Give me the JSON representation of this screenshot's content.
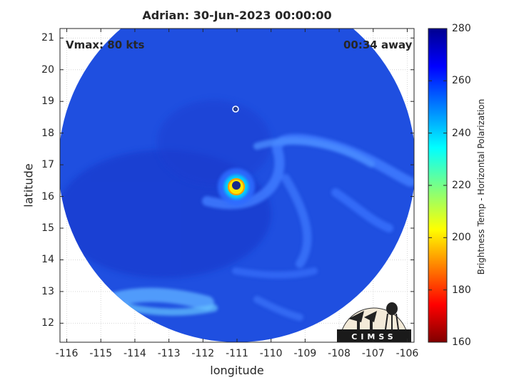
{
  "title": "Adrian: 30-Jun-2023 00:00:00",
  "annotations": {
    "vmax": "Vmax: 80 kts",
    "time_away": "00:34 away"
  },
  "axes": {
    "xlabel": "longitude",
    "ylabel": "latitude",
    "x_ticks": [
      "-116",
      "-115",
      "-114",
      "-113",
      "-112",
      "-111",
      "-110",
      "-109",
      "-108",
      "-107",
      "-106"
    ],
    "y_ticks": [
      "21",
      "20",
      "19",
      "18",
      "17",
      "16",
      "15",
      "14",
      "13",
      "12"
    ],
    "xlim": [
      -116.2,
      -105.8
    ],
    "ylim": [
      11.4,
      21.3
    ]
  },
  "colorbar": {
    "label": "Brightness Temp - Horizontal Polarization",
    "ticks": [
      "280",
      "260",
      "240",
      "220",
      "200",
      "180",
      "160"
    ],
    "range": [
      160,
      280
    ],
    "colormap": "jet"
  },
  "storm_center": {
    "lon": -111.0,
    "lat": 16.3
  },
  "logo": {
    "text": "CIMSS"
  },
  "colors": {
    "background_swath": "#1f4fe0",
    "eye_warm": "#ffe600",
    "eye_core": "#1a2a8a"
  }
}
